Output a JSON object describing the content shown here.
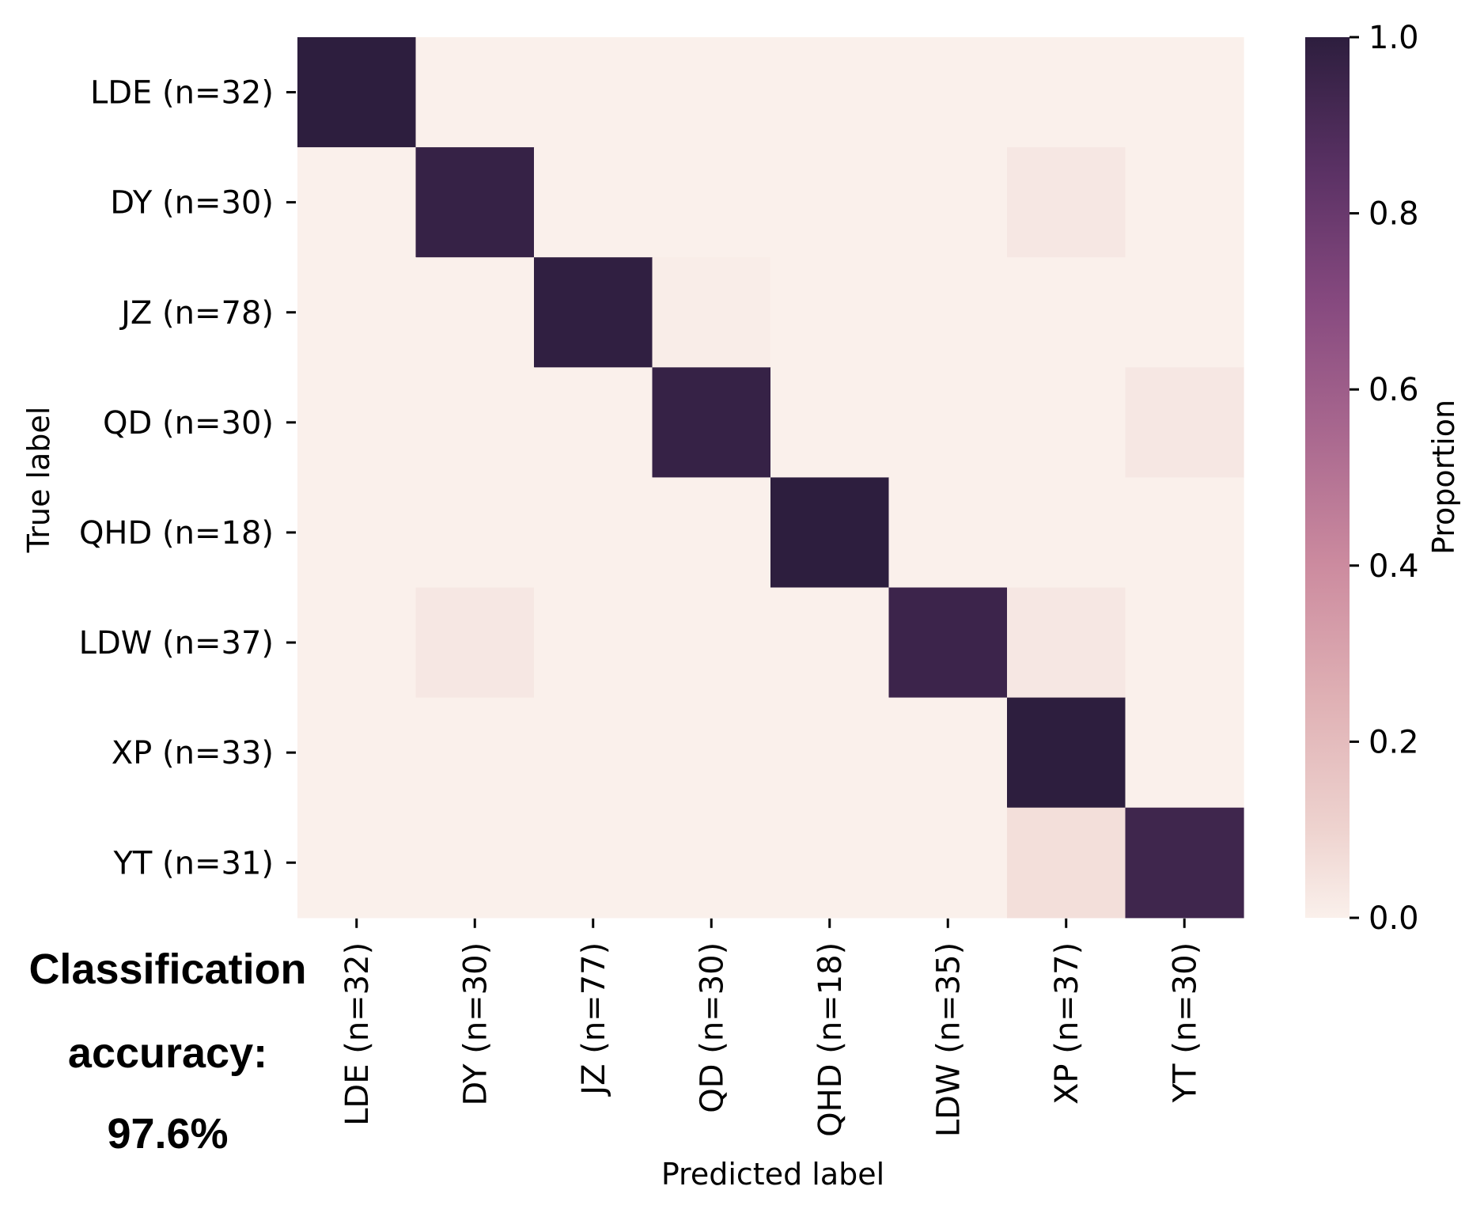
{
  "chart_data": {
    "type": "heatmap",
    "title": "",
    "xlabel": "Predicted label",
    "ylabel": "True label",
    "row_labels": [
      "LDE (n=32)",
      "DY (n=30)",
      "JZ (n=78)",
      "QD (n=30)",
      "QHD (n=18)",
      "LDW (n=37)",
      "XP (n=33)",
      "YT (n=31)"
    ],
    "col_labels": [
      "LDE (n=32)",
      "DY (n=30)",
      "JZ (n=77)",
      "QD (n=30)",
      "QHD (n=18)",
      "LDW (n=35)",
      "XP (n=37)",
      "YT (n=30)"
    ],
    "values": [
      [
        1.0,
        0.0,
        0.0,
        0.0,
        0.0,
        0.0,
        0.0,
        0.0
      ],
      [
        0.0,
        0.97,
        0.0,
        0.0,
        0.0,
        0.0,
        0.03,
        0.0
      ],
      [
        0.0,
        0.0,
        0.99,
        0.01,
        0.0,
        0.0,
        0.0,
        0.0
      ],
      [
        0.0,
        0.0,
        0.0,
        0.97,
        0.0,
        0.0,
        0.0,
        0.03
      ],
      [
        0.0,
        0.0,
        0.0,
        0.0,
        1.0,
        0.0,
        0.0,
        0.0
      ],
      [
        0.0,
        0.03,
        0.0,
        0.0,
        0.0,
        0.95,
        0.03,
        0.0
      ],
      [
        0.0,
        0.0,
        0.0,
        0.0,
        0.0,
        0.0,
        1.0,
        0.0
      ],
      [
        0.0,
        0.0,
        0.0,
        0.0,
        0.0,
        0.0,
        0.06,
        0.94
      ]
    ],
    "colorbar": {
      "label": "Proportion",
      "range": [
        0.0,
        1.0
      ],
      "ticks": [
        "0.0",
        "0.2",
        "0.4",
        "0.6",
        "0.8",
        "1.0"
      ],
      "colormap": "cubehelix-rose",
      "color_low": "#faf0eb",
      "color_high": "#2d1e3e"
    },
    "annotation": {
      "line1": "Classification",
      "line2": "accuracy:",
      "line3": "97.6%"
    }
  }
}
